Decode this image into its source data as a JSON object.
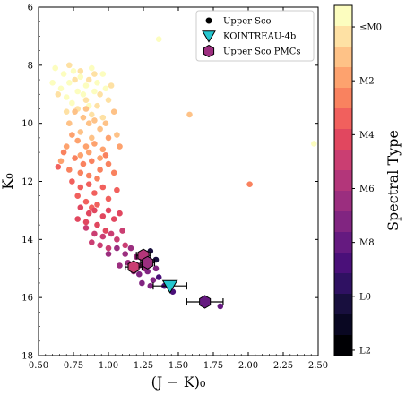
{
  "chart_data": {
    "type": "scatter",
    "xlabel": "(J − K)₀",
    "ylabel": "K₀",
    "xlim": [
      0.5,
      2.5
    ],
    "ylim": [
      18,
      6
    ],
    "y_inverted": true,
    "x_ticks": [
      "0.50",
      "0.75",
      "1.00",
      "1.25",
      "1.50",
      "1.75",
      "2.00",
      "2.25",
      "2.50"
    ],
    "y_ticks": [
      "6",
      "8",
      "10",
      "12",
      "14",
      "16",
      "18"
    ],
    "legend": {
      "placement": "top-right",
      "entries": [
        {
          "label": "Upper Sco",
          "marker": "circle",
          "color": "#000000"
        },
        {
          "label": "KOINTREAU-4b",
          "marker": "triangle-down",
          "color": "#26c6cf"
        },
        {
          "label": "Upper Sco PMCs",
          "marker": "hexagon",
          "color": "#9c2e7f"
        }
      ]
    },
    "colorbar": {
      "label": "Spectral Type",
      "tick_labels": [
        "≤M0",
        "M2",
        "M4",
        "M6",
        "M8",
        "L0",
        "L2"
      ],
      "colors": [
        "#fcfdbf",
        "#fee1a4",
        "#fec287",
        "#fda26e",
        "#f9825f",
        "#f1605d",
        "#e1475f",
        "#ca3e72",
        "#b3367a",
        "#9b2e7f",
        "#812581",
        "#651a80",
        "#4a1079",
        "#2f1162",
        "#180f3e",
        "#090722",
        "#000004"
      ]
    },
    "series": [
      {
        "name": "Upper Sco",
        "color_by": "spectral_type",
        "groups": [
          {
            "spt": "≤M0",
            "color": "#fcfdbf",
            "points": [
              [
                0.62,
                8.1
              ],
              [
                0.68,
                8.3
              ],
              [
                0.72,
                8.6
              ],
              [
                0.75,
                8.2
              ],
              [
                0.78,
                8.9
              ],
              [
                0.8,
                8.4
              ],
              [
                0.84,
                8.7
              ],
              [
                0.88,
                8.1
              ],
              [
                0.66,
                8.8
              ],
              [
                0.7,
                9.1
              ],
              [
                0.92,
                8.6
              ],
              [
                0.96,
                8.3
              ],
              [
                0.6,
                8.6
              ],
              [
                0.74,
                9.3
              ],
              [
                0.82,
                9.0
              ],
              [
                0.9,
                8.9
              ],
              [
                0.98,
                8.8
              ],
              [
                1.36,
                7.1
              ],
              [
                2.47,
                10.7
              ],
              [
                0.86,
                9.4
              ]
            ]
          },
          {
            "spt": "M1",
            "color": "#fee1a4",
            "points": [
              [
                0.72,
                8.0
              ],
              [
                0.8,
                8.2
              ],
              [
                0.86,
                8.5
              ],
              [
                0.9,
                8.3
              ],
              [
                0.94,
                9.0
              ],
              [
                0.78,
                9.5
              ],
              [
                0.84,
                9.2
              ],
              [
                0.88,
                9.7
              ],
              [
                0.92,
                9.4
              ],
              [
                1.0,
                9.2
              ],
              [
                0.7,
                9.6
              ],
              [
                0.96,
                9.8
              ],
              [
                1.02,
                8.7
              ],
              [
                0.76,
                8.5
              ],
              [
                0.64,
                9.0
              ]
            ]
          },
          {
            "spt": "M2",
            "color": "#fec287",
            "points": [
              [
                0.76,
                9.6
              ],
              [
                0.82,
                9.8
              ],
              [
                0.86,
                10.0
              ],
              [
                0.9,
                9.9
              ],
              [
                0.94,
                10.2
              ],
              [
                0.98,
                10.0
              ],
              [
                0.8,
                10.3
              ],
              [
                0.72,
                10.0
              ],
              [
                1.04,
                9.6
              ],
              [
                1.06,
                10.4
              ],
              [
                0.88,
                10.5
              ],
              [
                1.58,
                9.7
              ],
              [
                0.84,
                9.5
              ]
            ]
          },
          {
            "spt": "M3",
            "color": "#fda26e",
            "points": [
              [
                0.74,
                10.4
              ],
              [
                0.78,
                10.6
              ],
              [
                0.84,
                10.8
              ],
              [
                0.9,
                10.7
              ],
              [
                0.96,
                10.9
              ],
              [
                1.0,
                10.5
              ],
              [
                0.7,
                10.8
              ],
              [
                0.86,
                11.0
              ],
              [
                1.08,
                10.8
              ],
              [
                0.94,
                11.2
              ],
              [
                0.8,
                11.1
              ],
              [
                0.66,
                11.3
              ]
            ]
          },
          {
            "spt": "M4",
            "color": "#f9825f",
            "points": [
              [
                0.76,
                11.2
              ],
              [
                0.82,
                11.4
              ],
              [
                0.88,
                11.3
              ],
              [
                0.94,
                11.6
              ],
              [
                1.0,
                11.4
              ],
              [
                0.72,
                11.6
              ],
              [
                0.86,
                11.8
              ],
              [
                0.92,
                11.9
              ],
              [
                0.8,
                11.7
              ],
              [
                1.04,
                11.7
              ],
              [
                2.01,
                12.1
              ],
              [
                0.68,
                11.0
              ],
              [
                0.98,
                11.1
              ]
            ]
          },
          {
            "spt": "M5",
            "color": "#f1605d",
            "points": [
              [
                0.74,
                12.0
              ],
              [
                0.8,
                12.2
              ],
              [
                0.86,
                12.1
              ],
              [
                0.9,
                12.4
              ],
              [
                0.96,
                12.2
              ],
              [
                1.0,
                12.6
              ],
              [
                0.78,
                12.5
              ],
              [
                0.84,
                12.7
              ],
              [
                0.92,
                12.8
              ],
              [
                1.06,
                12.3
              ],
              [
                0.64,
                11.5
              ],
              [
                0.88,
                12.9
              ]
            ]
          },
          {
            "spt": "M6",
            "color": "#e1475f",
            "points": [
              [
                0.8,
                12.9
              ],
              [
                0.86,
                13.1
              ],
              [
                0.9,
                13.0
              ],
              [
                0.96,
                13.2
              ],
              [
                1.0,
                13.0
              ],
              [
                0.84,
                13.4
              ],
              [
                0.92,
                13.5
              ],
              [
                1.04,
                13.3
              ],
              [
                0.78,
                13.3
              ],
              [
                0.98,
                13.7
              ],
              [
                1.08,
                13.1
              ]
            ]
          },
          {
            "spt": "M7",
            "color": "#ca3e72",
            "points": [
              [
                0.84,
                13.6
              ],
              [
                0.9,
                13.8
              ],
              [
                0.96,
                13.9
              ],
              [
                1.02,
                13.8
              ],
              [
                1.06,
                14.0
              ],
              [
                0.88,
                14.1
              ],
              [
                0.94,
                14.2
              ],
              [
                1.1,
                13.7
              ],
              [
                1.0,
                14.3
              ],
              [
                1.12,
                14.2
              ]
            ]
          },
          {
            "spt": "M8",
            "color": "#9b2e7f",
            "points": [
              [
                1.0,
                14.5
              ],
              [
                1.06,
                14.3
              ],
              [
                1.12,
                14.5
              ],
              [
                1.16,
                14.3
              ],
              [
                1.2,
                14.6
              ],
              [
                1.14,
                14.8
              ],
              [
                1.08,
                14.9
              ],
              [
                1.22,
                14.9
              ],
              [
                1.18,
                15.1
              ],
              [
                1.26,
                15.0
              ]
            ]
          },
          {
            "spt": "M9",
            "color": "#812581",
            "points": [
              [
                1.22,
                15.2
              ],
              [
                1.28,
                15.1
              ],
              [
                1.32,
                15.4
              ],
              [
                1.24,
                15.5
              ],
              [
                1.34,
                15.0
              ],
              [
                1.3,
                15.6
              ]
            ]
          },
          {
            "spt": "L0",
            "color": "#4a1079",
            "points": [
              [
                1.36,
                15.3
              ],
              [
                1.4,
                15.6
              ],
              [
                1.46,
                15.8
              ]
            ]
          },
          {
            "spt": "L1",
            "color": "#180f3e",
            "points": [
              [
                1.3,
                14.4
              ],
              [
                1.34,
                14.7
              ],
              [
                1.2,
                14.9
              ]
            ]
          },
          {
            "spt": "L0",
            "color": "#651a80",
            "points": [
              [
                1.8,
                16.3
              ]
            ]
          }
        ]
      },
      {
        "name": "KOINTREAU-4b",
        "color": "#26c6cf",
        "points": [
          {
            "x": 1.44,
            "y": 15.6,
            "xerr": 0.12,
            "yerr": 0.15
          }
        ]
      },
      {
        "name": "Upper Sco PMCs",
        "points": [
          {
            "x": 1.18,
            "y": 14.95,
            "xerr": 0.06,
            "yerr": 0.1,
            "color": "#ca3e72"
          },
          {
            "x": 1.25,
            "y": 14.55,
            "xerr": 0.05,
            "yerr": 0.1,
            "color": "#b3367a"
          },
          {
            "x": 1.28,
            "y": 14.8,
            "xerr": 0.05,
            "yerr": 0.1,
            "color": "#9b2e7f"
          },
          {
            "x": 1.69,
            "y": 16.15,
            "xerr": 0.13,
            "yerr": 0.2,
            "color": "#651a80"
          }
        ]
      }
    ]
  }
}
